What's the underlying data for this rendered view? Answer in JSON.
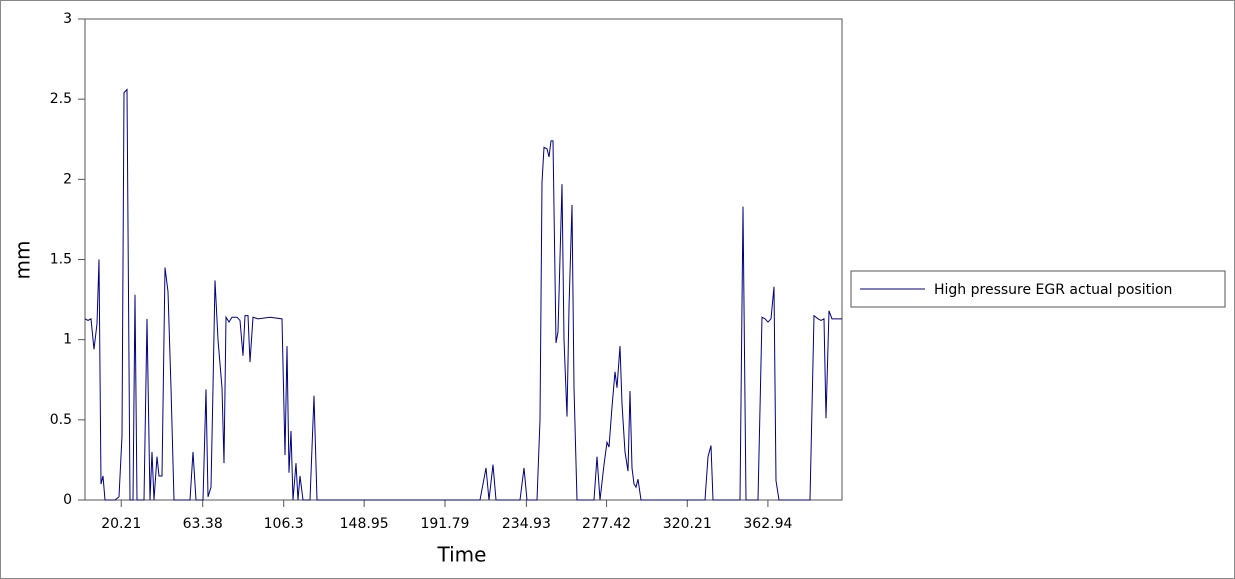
{
  "chart_data": {
    "type": "line",
    "x_label": "Time",
    "y_label": "mm",
    "x": [
      1,
      2.59,
      4.18,
      5.77,
      7.36,
      8.42,
      9.48,
      10.54,
      11.6,
      16.9,
      19.02,
      20.61,
      21.67,
      23.26,
      24.85,
      26.44,
      27.5,
      28.56,
      32.27,
      33.86,
      35.45,
      36.51,
      37.57,
      39.16,
      40.22,
      41.81,
      43.4,
      44.99,
      46.58,
      48.17,
      56.65,
      58.24,
      59.83,
      63.54,
      65.13,
      66.19,
      67.78,
      68.84,
      69.9,
      71.49,
      73.61,
      74.67,
      75.73,
      77.32,
      78.91,
      81.56,
      83.15,
      84.74,
      85.8,
      87.39,
      88.45,
      90.04,
      92.69,
      99.05,
      105.41,
      107,
      108.06,
      109.12,
      110.18,
      111.24,
      112.83,
      113.89,
      114.95,
      116.54,
      120.25,
      122.37,
      123.96,
      130.85,
      210.35,
      213.53,
      215.12,
      217.24,
      218.83,
      231.55,
      233.67,
      235.26,
      240.56,
      242.15,
      243.21,
      244.27,
      245.86,
      246.92,
      247.98,
      249.04,
      250.63,
      251.69,
      253.81,
      254.87,
      256.46,
      257.52,
      259.11,
      260.17,
      261.76,
      270.77,
      272.36,
      273.95,
      276.07,
      277.66,
      278.72,
      280.31,
      281.9,
      282.96,
      284.55,
      285.61,
      287.2,
      288.79,
      289.85,
      290.91,
      291.97,
      293.03,
      294.09,
      295.68,
      329.6,
      331.19,
      332.78,
      333.84,
      348.15,
      349.74,
      351.33,
      357.69,
      359.81,
      361.4,
      362.99,
      364.58,
      366.17,
      367.23,
      368.82,
      385.25,
      387.37,
      389.49,
      391.08,
      392.67,
      393.73,
      395.32,
      396.91,
      398.5,
      402.21
    ],
    "series": [
      {
        "name": "High pressure EGR actual position",
        "color": "#000080",
        "values": [
          1.13,
          1.12,
          1.13,
          0.94,
          1.1,
          1.5,
          0.1,
          0.15,
          0,
          0,
          0.02,
          0.4,
          2.54,
          2.56,
          0,
          0,
          1.28,
          0,
          0,
          1.13,
          0,
          0.3,
          0,
          0.27,
          0.15,
          0.15,
          1.45,
          1.3,
          0.7,
          0,
          0,
          0.3,
          0,
          0,
          0.69,
          0.02,
          0.08,
          0.7,
          1.37,
          1.0,
          0.7,
          0.23,
          1.14,
          1.11,
          1.14,
          1.14,
          1.12,
          0.9,
          1.15,
          1.15,
          0.86,
          1.14,
          1.13,
          1.14,
          1.13,
          0.28,
          0.96,
          0.17,
          0.43,
          0,
          0.23,
          0,
          0.15,
          0,
          0,
          0.65,
          0,
          0,
          0,
          0.2,
          0,
          0.22,
          0,
          0,
          0.2,
          0,
          0,
          0.5,
          1.98,
          2.2,
          2.19,
          2.14,
          2.24,
          2.24,
          0.98,
          1.05,
          1.97,
          1.0,
          0.52,
          1.2,
          1.84,
          0.7,
          0,
          0,
          0.27,
          0,
          0.22,
          0.36,
          0.33,
          0.58,
          0.8,
          0.7,
          0.96,
          0.6,
          0.3,
          0.18,
          0.68,
          0.2,
          0.1,
          0.08,
          0.13,
          0,
          0,
          0.27,
          0.34,
          0,
          0,
          1.83,
          0,
          0,
          1.14,
          1.13,
          1.11,
          1.13,
          1.33,
          0.12,
          0,
          0,
          1.15,
          1.13,
          1.12,
          1.13,
          0.51,
          1.18,
          1.13,
          1.13,
          1.13
        ]
      }
    ],
    "xlim": [
      1,
      402.21
    ],
    "ylim": [
      0,
      3
    ],
    "xticks": [
      20.21,
      63.38,
      106.3,
      148.95,
      191.79,
      234.93,
      277.42,
      320.21,
      362.94
    ],
    "yticks": [
      0,
      {
        "value": 0.5,
        "label": "0.5"
      },
      1,
      1.5,
      2,
      2.5,
      3
    ],
    "legend": "right",
    "grid": false
  }
}
